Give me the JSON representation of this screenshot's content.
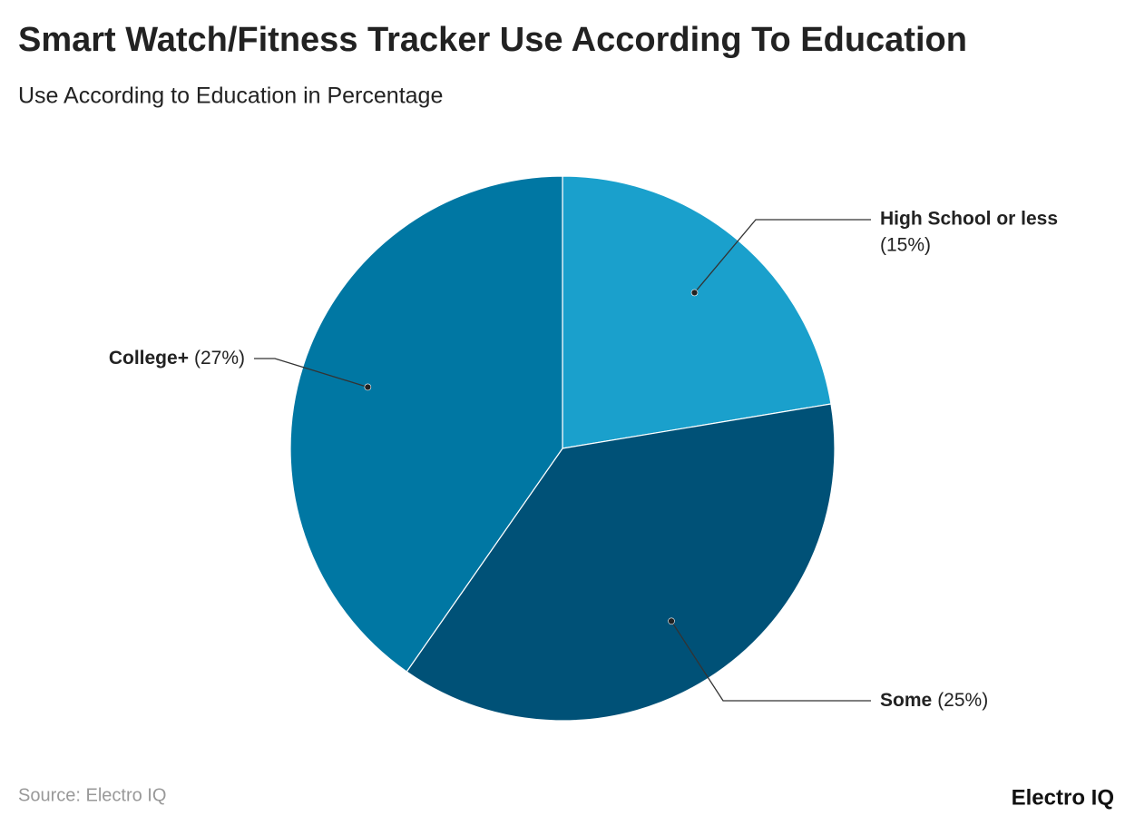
{
  "chart_data": {
    "type": "pie",
    "title": "Smart Watch/Fitness Tracker Use According To Education",
    "subtitle": "Use According to Education in Percentage",
    "categories": [
      "High School or less",
      "Some",
      "College+"
    ],
    "values": [
      15,
      25,
      27
    ],
    "value_labels": [
      "(15%)",
      "(25%)",
      "(27%)"
    ],
    "colors": [
      "#1aa0cc",
      "#005177",
      "#0077a3"
    ],
    "source": "Source: Electro IQ",
    "brand": "Electro IQ"
  }
}
